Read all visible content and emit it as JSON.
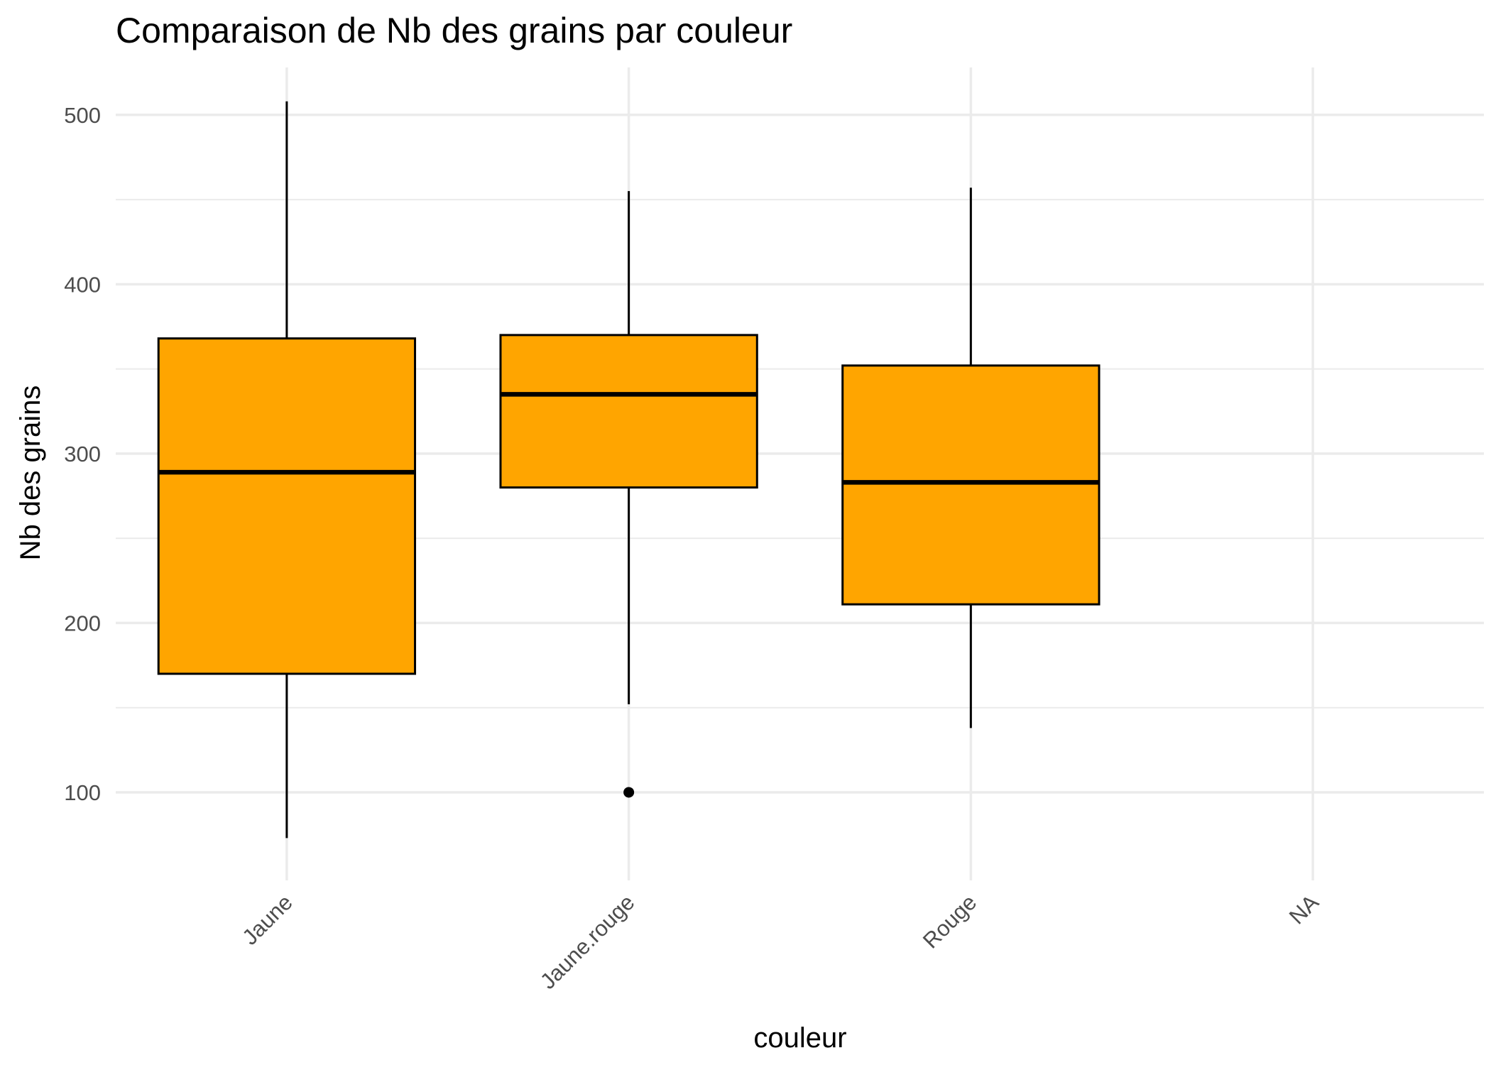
{
  "chart_data": {
    "type": "boxplot",
    "title": "Comparaison de Nb des grains par couleur",
    "xlabel": "couleur",
    "ylabel": "Nb des grains",
    "categories": [
      "Jaune",
      "Jaune.rouge",
      "Rouge",
      "NA"
    ],
    "ylim": [
      48,
      528
    ],
    "yticks": [
      100,
      200,
      300,
      400,
      500
    ],
    "grid": true,
    "legend": "none",
    "boxes": [
      {
        "category": "Jaune",
        "min": 73,
        "q1": 170,
        "median": 289,
        "q3": 368,
        "max": 508,
        "outliers": []
      },
      {
        "category": "Jaune.rouge",
        "min": 152,
        "q1": 280,
        "median": 335,
        "q3": 370,
        "max": 455,
        "outliers": [
          100
        ]
      },
      {
        "category": "Rouge",
        "min": 138,
        "q1": 211,
        "median": 283,
        "q3": 352,
        "max": 457,
        "outliers": []
      },
      {
        "category": "NA",
        "min": null,
        "q1": null,
        "median": null,
        "q3": null,
        "max": null,
        "outliers": []
      }
    ],
    "colors": {
      "box_fill": "#FFA500",
      "box_stroke": "#000000",
      "grid": "#EBEBEB",
      "tick_text": "#4D4D4D"
    }
  }
}
